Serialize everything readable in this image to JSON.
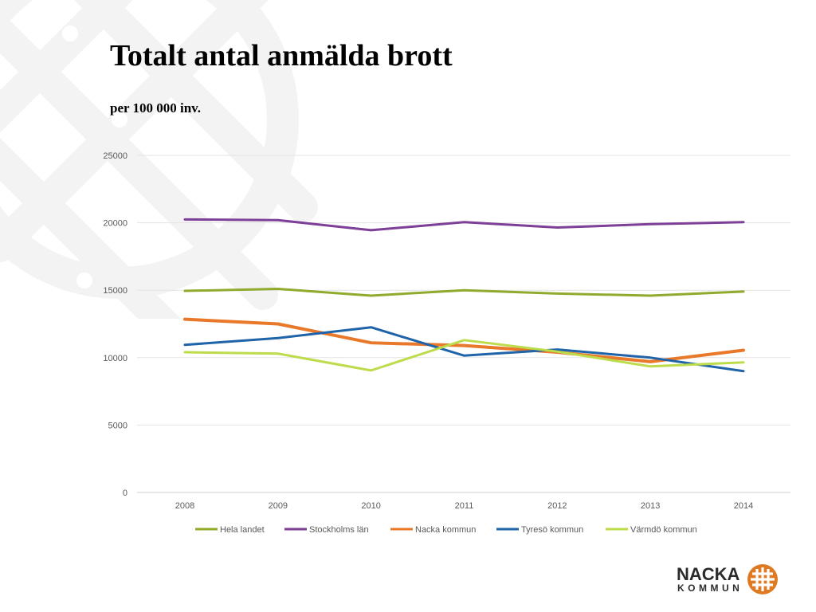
{
  "slide": {
    "title": "Totalt antal anmälda brott",
    "subtitle": "per 100 000 inv."
  },
  "logo": {
    "name": "NACKA",
    "sub": "KOMMUN",
    "color": "#e07a22"
  },
  "chart_data": {
    "type": "line",
    "title": "",
    "xlabel": "",
    "ylabel": "",
    "x": [
      "2008",
      "2009",
      "2010",
      "2011",
      "2012",
      "2013",
      "2014"
    ],
    "ylim": [
      0,
      25000
    ],
    "yticks": [
      0,
      5000,
      10000,
      15000,
      20000,
      25000
    ],
    "grid": true,
    "legend": "bottom",
    "series": [
      {
        "name": "Hela landet",
        "color": "#8faa2c",
        "values": [
          14950,
          15100,
          14600,
          15000,
          14750,
          14600,
          14900
        ]
      },
      {
        "name": "Stockholms län",
        "color": "#7d3f98",
        "values": [
          20250,
          20200,
          19450,
          20050,
          19650,
          19900,
          20050
        ]
      },
      {
        "name": "Nacka kommun",
        "color": "#e8782a",
        "values": [
          12850,
          12500,
          11100,
          10900,
          10400,
          9700,
          10550
        ]
      },
      {
        "name": "Tyresö kommun",
        "color": "#1f63a8",
        "values": [
          10950,
          11450,
          12250,
          10150,
          10600,
          10000,
          9000
        ]
      },
      {
        "name": "Värmdö kommun",
        "color": "#bcdc4c",
        "values": [
          10400,
          10300,
          9050,
          11300,
          10450,
          9350,
          9650
        ]
      }
    ]
  }
}
